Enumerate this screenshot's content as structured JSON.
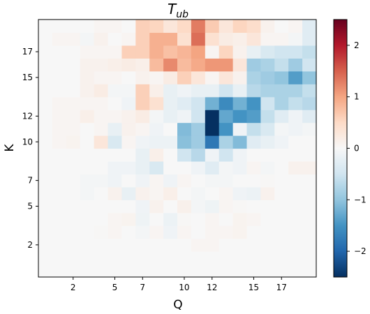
{
  "chart_data": {
    "type": "heatmap",
    "title": "T",
    "title_subscript": "ub",
    "xlabel": "Q",
    "ylabel": "K",
    "x_ticks": [
      2,
      5,
      7,
      10,
      12,
      15,
      17
    ],
    "x_tick_labels": [
      "2",
      "5",
      "7",
      "10",
      "12",
      "15",
      "17"
    ],
    "y_ticks": [
      2,
      5,
      7,
      10,
      12,
      15,
      17
    ],
    "y_tick_labels": [
      "2",
      "5",
      "7",
      "10",
      "12",
      "15",
      "17"
    ],
    "colorbar_ticks": [
      -2,
      -1,
      0,
      1,
      2
    ],
    "colorbar_tick_labels": [
      "−2",
      "−1",
      "0",
      "1",
      "2"
    ],
    "vmin": -2.5,
    "vmax": 2.5,
    "colormap": "RdBu_r",
    "grid": false,
    "z_bottom_to_top": [
      [
        0,
        0,
        0,
        0,
        0,
        0,
        0,
        0,
        0,
        0,
        0,
        0,
        0,
        0,
        0,
        0,
        0,
        0,
        0,
        0
      ],
      [
        0,
        0,
        0,
        0,
        0,
        0,
        0,
        0,
        0,
        0,
        0,
        0,
        0,
        0,
        0,
        0,
        0,
        0,
        0,
        0
      ],
      [
        0,
        0,
        0,
        0,
        0,
        0,
        0,
        0,
        0,
        0,
        0,
        0.05,
        0.05,
        0,
        0,
        0,
        0,
        0,
        0,
        0
      ],
      [
        0,
        0,
        0,
        0,
        0.02,
        0.05,
        0,
        -0.05,
        0.05,
        -0.1,
        0.05,
        0,
        0.05,
        0.05,
        0.08,
        0,
        0,
        0,
        0,
        0
      ],
      [
        0,
        0,
        0,
        0,
        0,
        0.05,
        0.08,
        -0.12,
        0,
        -0.15,
        0.02,
        0,
        0.05,
        0,
        0.08,
        0.05,
        0,
        0,
        0,
        0
      ],
      [
        0,
        0,
        0,
        0,
        0,
        0,
        0,
        -0.1,
        0.1,
        0,
        0.12,
        -0.05,
        -0.12,
        0.05,
        0.02,
        0,
        0,
        0,
        0,
        0
      ],
      [
        0,
        0,
        0,
        -0.05,
        0,
        0.1,
        -0.2,
        0.1,
        0.05,
        0.15,
        0,
        -0.05,
        0,
        0.05,
        -0.1,
        -0.15,
        0.1,
        0,
        0,
        0
      ],
      [
        0,
        0,
        0,
        -0.05,
        -0.05,
        -0.1,
        0,
        -0.1,
        0.05,
        -0.1,
        0.05,
        0,
        -0.05,
        -0.05,
        0,
        0,
        0.02,
        0,
        0,
        0
      ],
      [
        0,
        0,
        0,
        0,
        0,
        -0.1,
        -0.1,
        -0.2,
        -0.4,
        0,
        0,
        -0.1,
        -0.3,
        -0.05,
        -0.1,
        0.05,
        -0.05,
        0,
        0.1,
        0.1
      ],
      [
        0,
        0,
        0,
        0,
        0,
        0,
        0,
        -0.2,
        0.15,
        0,
        -0.5,
        -0.7,
        -0.1,
        -0.5,
        -0.1,
        0,
        0,
        0,
        0,
        0
      ],
      [
        0,
        0.05,
        0.08,
        0,
        0.3,
        -0.4,
        0.05,
        -0.1,
        -0.15,
        -0.15,
        -1.05,
        -0.9,
        -1.8,
        -0.8,
        -1.1,
        -0.3,
        -0.2,
        -0.1,
        0,
        0
      ],
      [
        0,
        0.05,
        0.05,
        0,
        0.05,
        -0.2,
        0.1,
        0.05,
        -0.1,
        0,
        -1.1,
        -0.9,
        -2.5,
        -1.5,
        -0.1,
        -0.6,
        -0.4,
        -0.05,
        -0.1,
        -0.05
      ],
      [
        0,
        0.05,
        0.05,
        0.15,
        0.05,
        0.05,
        0.1,
        0.2,
        -0.05,
        -0.2,
        -0.1,
        -0.5,
        -2.5,
        -1.3,
        -1.5,
        -1.4,
        -0.6,
        -0.3,
        -0.1,
        -0.3
      ],
      [
        0,
        0.05,
        0.05,
        0.05,
        0.05,
        0,
        -0.1,
        0.6,
        0.4,
        -0.2,
        -0.3,
        -0.5,
        -1.2,
        -1.6,
        -1.2,
        -1.5,
        -0.5,
        -0.8,
        -0.6,
        -0.7
      ],
      [
        0,
        0,
        0,
        0.1,
        0.2,
        -0.05,
        -0.05,
        0.6,
        0.15,
        -0.2,
        -0.1,
        -0.2,
        -0.2,
        -0.5,
        -0.2,
        -0.7,
        -0.8,
        -0.8,
        -0.8,
        -0.6
      ],
      [
        0,
        0,
        0,
        0.1,
        0.05,
        0.05,
        0,
        0.1,
        0.05,
        0.2,
        0.6,
        0.3,
        0.05,
        0.3,
        0.1,
        -0.8,
        -0.9,
        -1.0,
        -1.4,
        -1.0
      ],
      [
        0,
        0,
        0,
        0.1,
        0.1,
        0.15,
        0.2,
        0.15,
        0.8,
        1.2,
        0.8,
        0.95,
        1.1,
        1.1,
        0.3,
        -0.9,
        -0.8,
        -0.6,
        -0.9,
        -0.5
      ],
      [
        0,
        0,
        0,
        0.05,
        0.05,
        0.05,
        0.6,
        0.6,
        0.9,
        0.75,
        0.85,
        1.0,
        0.05,
        0.55,
        0.1,
        -0.2,
        -0.4,
        -0.5,
        -0.5,
        -0.6
      ],
      [
        0,
        0.05,
        0.05,
        -0.05,
        0.1,
        0,
        0.05,
        0.6,
        0.9,
        0.9,
        0.4,
        1.4,
        0.4,
        0.2,
        0.15,
        0.3,
        0.05,
        0.05,
        -0.05,
        -0.3
      ],
      [
        0,
        0,
        0,
        0,
        0.05,
        0.05,
        0,
        0.6,
        0.55,
        0.3,
        0.5,
        1.3,
        0.65,
        0.3,
        0.55,
        0.45,
        0.1,
        0,
        0.05,
        -0.3
      ]
    ]
  }
}
